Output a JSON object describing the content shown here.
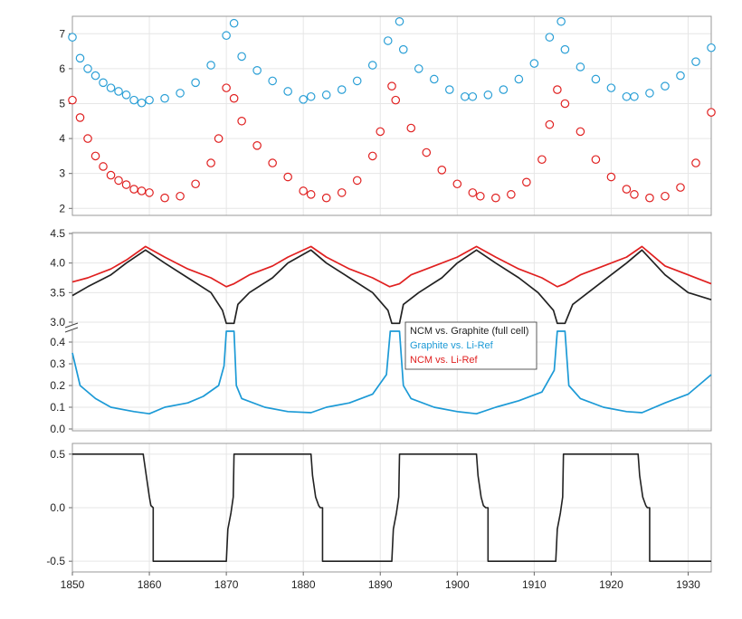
{
  "chart_data": [
    {
      "type": "scatter",
      "x_range": [
        1850,
        1933
      ],
      "ylim": [
        1.8,
        7.5
      ],
      "yticks": [
        "2",
        "3",
        "4",
        "5",
        "6",
        "7"
      ],
      "grid": true,
      "series": [
        {
          "color": "#2a9fd6",
          "pattern": "sawtooth",
          "period": 21.3,
          "peaks_x": [
            1871,
            1892.5,
            1913.5
          ],
          "gap_x": [
            1859,
            1880.5,
            1902,
            1923.5
          ],
          "points_x": [
            1850,
            1851,
            1852,
            1853,
            1854,
            1855,
            1856,
            1857,
            1858,
            1859,
            1860,
            1862,
            1864,
            1866,
            1868,
            1870,
            1871,
            1872,
            1874,
            1876,
            1878,
            1880,
            1881,
            1883,
            1885,
            1887,
            1889,
            1891,
            1892.5,
            1893,
            1895,
            1897,
            1899,
            1901,
            1902,
            1904,
            1906,
            1908,
            1910,
            1912,
            1913.5,
            1914,
            1916,
            1918,
            1920,
            1922,
            1923,
            1925,
            1927,
            1929,
            1931,
            1933
          ],
          "points_y": [
            6.9,
            6.3,
            6.0,
            5.8,
            5.6,
            5.45,
            5.35,
            5.25,
            5.1,
            5.02,
            5.1,
            5.15,
            5.3,
            5.6,
            6.1,
            6.95,
            7.3,
            6.35,
            5.95,
            5.65,
            5.35,
            5.12,
            5.2,
            5.25,
            5.4,
            5.65,
            6.1,
            6.8,
            7.35,
            6.55,
            6.0,
            5.7,
            5.4,
            5.2,
            5.2,
            5.25,
            5.4,
            5.7,
            6.15,
            6.9,
            7.35,
            6.55,
            6.05,
            5.7,
            5.45,
            5.2,
            5.2,
            5.3,
            5.5,
            5.8,
            6.2,
            6.6
          ]
        },
        {
          "color": "#e02020",
          "pattern": "sawtooth",
          "period": 21.3,
          "peaks_x": [
            1870,
            1891.5,
            1913
          ],
          "gap_x": [
            1859,
            1880.5,
            1902,
            1923.5
          ],
          "points_x": [
            1850,
            1851,
            1852,
            1853,
            1854,
            1855,
            1856,
            1857,
            1858,
            1859,
            1860,
            1862,
            1864,
            1866,
            1868,
            1869,
            1870,
            1871,
            1872,
            1874,
            1876,
            1878,
            1880,
            1881,
            1883,
            1885,
            1887,
            1889,
            1890,
            1891.5,
            1892,
            1894,
            1896,
            1898,
            1900,
            1902,
            1903,
            1905,
            1907,
            1909,
            1911,
            1912,
            1913,
            1914,
            1916,
            1918,
            1920,
            1922,
            1923,
            1925,
            1927,
            1929,
            1931,
            1933
          ],
          "points_y": [
            5.1,
            4.6,
            4.0,
            3.5,
            3.2,
            2.95,
            2.8,
            2.68,
            2.55,
            2.5,
            2.45,
            2.3,
            2.35,
            2.7,
            3.3,
            4.0,
            5.45,
            5.15,
            4.5,
            3.8,
            3.3,
            2.9,
            2.5,
            2.4,
            2.3,
            2.45,
            2.8,
            3.5,
            4.2,
            5.5,
            5.1,
            4.3,
            3.6,
            3.1,
            2.7,
            2.45,
            2.35,
            2.3,
            2.4,
            2.75,
            3.4,
            4.4,
            5.4,
            5.0,
            4.2,
            3.4,
            2.9,
            2.55,
            2.4,
            2.3,
            2.35,
            2.6,
            3.3,
            4.75
          ]
        }
      ]
    },
    {
      "type": "line",
      "x_range": [
        1850,
        1933
      ],
      "broken_y_axis": true,
      "upper_ylim": [
        3.0,
        4.5
      ],
      "upper_yticks": [
        "3.0",
        "3.5",
        "4.0",
        "4.5"
      ],
      "lower_ylim": [
        0.0,
        0.45
      ],
      "lower_yticks": [
        "0.0",
        "0.1",
        "0.2",
        "0.3",
        "0.4"
      ],
      "grid": true,
      "legend_position": "center",
      "series": [
        {
          "name": "NCM vs. Graphite (full cell)",
          "color": "#222222",
          "axis": "upper",
          "x": [
            1850,
            1852,
            1855,
            1857,
            1859.5,
            1862,
            1865,
            1868,
            1869.5,
            1870,
            1871,
            1871.5,
            1873,
            1876,
            1878,
            1881,
            1883,
            1886,
            1889,
            1891,
            1891.5,
            1892.5,
            1893,
            1895,
            1898,
            1900,
            1902.5,
            1905,
            1908,
            1910.5,
            1912.5,
            1913,
            1914,
            1915,
            1917,
            1920,
            1922,
            1924,
            1927,
            1930,
            1933
          ],
          "y": [
            3.45,
            3.6,
            3.8,
            4.0,
            4.22,
            4.0,
            3.75,
            3.5,
            3.2,
            2.98,
            2.98,
            3.3,
            3.5,
            3.75,
            4.0,
            4.22,
            4.0,
            3.75,
            3.5,
            3.2,
            2.98,
            2.98,
            3.3,
            3.5,
            3.75,
            4.0,
            4.22,
            4.0,
            3.75,
            3.5,
            3.2,
            2.98,
            2.98,
            3.3,
            3.5,
            3.8,
            4.0,
            4.22,
            3.8,
            3.5,
            3.38
          ]
        },
        {
          "name": "Graphite vs. Li-Ref",
          "color": "#1c9ad6",
          "axis": "lower",
          "x": [
            1850,
            1851,
            1853,
            1855,
            1858,
            1860,
            1862,
            1865,
            1867,
            1869,
            1869.7,
            1870,
            1871,
            1871.3,
            1872,
            1875,
            1878,
            1881,
            1883,
            1886,
            1889,
            1890.8,
            1891.3,
            1892.5,
            1893,
            1894,
            1897,
            1900,
            1902.5,
            1905,
            1908,
            1911,
            1912.6,
            1913,
            1914,
            1914.5,
            1916,
            1919,
            1922,
            1924,
            1927,
            1930,
            1933
          ],
          "y": [
            0.35,
            0.2,
            0.14,
            0.1,
            0.08,
            0.07,
            0.1,
            0.12,
            0.15,
            0.2,
            0.29,
            0.45,
            0.45,
            0.2,
            0.14,
            0.1,
            0.08,
            0.075,
            0.1,
            0.12,
            0.16,
            0.25,
            0.45,
            0.45,
            0.2,
            0.14,
            0.1,
            0.08,
            0.07,
            0.1,
            0.13,
            0.17,
            0.27,
            0.45,
            0.45,
            0.2,
            0.14,
            0.1,
            0.08,
            0.075,
            0.12,
            0.16,
            0.25
          ]
        },
        {
          "name": "NCM vs. Li-Ref",
          "color": "#e02020",
          "axis": "upper",
          "x": [
            1850,
            1852,
            1855,
            1857,
            1859.5,
            1862,
            1865,
            1868,
            1870,
            1871,
            1873,
            1876,
            1878,
            1881,
            1883,
            1886,
            1889,
            1891.2,
            1892.5,
            1894,
            1897,
            1900,
            1902.5,
            1905,
            1908,
            1911,
            1913,
            1914,
            1916,
            1919,
            1922,
            1924,
            1927,
            1930,
            1933
          ],
          "y": [
            3.68,
            3.75,
            3.9,
            4.05,
            4.28,
            4.1,
            3.9,
            3.75,
            3.6,
            3.65,
            3.8,
            3.95,
            4.1,
            4.28,
            4.1,
            3.9,
            3.75,
            3.6,
            3.65,
            3.8,
            3.95,
            4.1,
            4.28,
            4.1,
            3.9,
            3.75,
            3.6,
            3.65,
            3.8,
            3.95,
            4.1,
            4.28,
            3.95,
            3.8,
            3.65
          ]
        }
      ]
    },
    {
      "type": "line",
      "x_range": [
        1850,
        1933
      ],
      "ylim": [
        -0.6,
        0.6
      ],
      "yticks": [
        "-0.5",
        "0.0",
        "0.5"
      ],
      "xticks": [
        "1850",
        "1860",
        "1870",
        "1880",
        "1890",
        "1900",
        "1910",
        "1920",
        "1930"
      ],
      "grid": true,
      "series": [
        {
          "color": "#222222",
          "x": [
            1850,
            1859.2,
            1859.6,
            1860,
            1860.2,
            1860.5,
            1860.5,
            1870,
            1870.2,
            1870.6,
            1870.9,
            1871,
            1881,
            1881.2,
            1881.6,
            1882,
            1882.2,
            1882.5,
            1882.5,
            1891.5,
            1891.7,
            1892.1,
            1892.4,
            1892.5,
            1902.5,
            1902.7,
            1903.1,
            1903.4,
            1903.7,
            1904,
            1904,
            1912.8,
            1913.0,
            1913.4,
            1913.7,
            1913.8,
            1923.5,
            1923.7,
            1924.1,
            1924.5,
            1924.7,
            1925,
            1925,
            1933
          ],
          "y": [
            0.5,
            0.5,
            0.3,
            0.1,
            0.02,
            0.0,
            -0.5,
            -0.5,
            -0.2,
            -0.05,
            0.1,
            0.5,
            0.5,
            0.3,
            0.1,
            0.02,
            0.0,
            0.0,
            -0.5,
            -0.5,
            -0.2,
            -0.05,
            0.1,
            0.5,
            0.5,
            0.3,
            0.1,
            0.02,
            0.0,
            0.0,
            -0.5,
            -0.5,
            -0.2,
            -0.05,
            0.1,
            0.5,
            0.5,
            0.3,
            0.1,
            0.02,
            0.0,
            0.0,
            -0.5,
            -0.5
          ]
        }
      ]
    }
  ]
}
